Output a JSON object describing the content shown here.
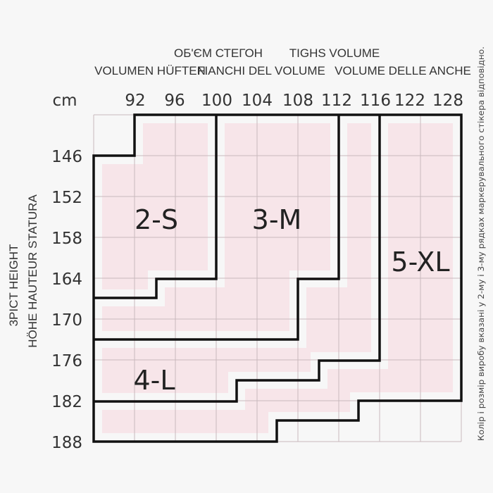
{
  "header": {
    "line1": [
      "ОБ'ЄМ СТЕГОН",
      "TIGHS VOLUME"
    ],
    "line2": [
      "VOLUMEN HÜFTEN",
      "FIANCHI DEL VOLUME",
      "VOLUME DELLE ANCHE"
    ]
  },
  "unit": "cm",
  "hip_values": [
    "92",
    "96",
    "100",
    "104",
    "108",
    "112",
    "116",
    "122",
    "128"
  ],
  "height_values": [
    "146",
    "152",
    "158",
    "164",
    "170",
    "176",
    "182",
    "188"
  ],
  "height_labels": {
    "outer": "3PICT  HEIGHT",
    "inner": "HÖHE  HAUTEUR  STATURA"
  },
  "sizes": [
    "2-S",
    "3-M",
    "4-L",
    "5-XL"
  ],
  "note": "Колір і розмір виробу вказані у 2-му і 3-му рядках маркерувального стікера відповідно.",
  "colors": {
    "fill": "#f7e5e9",
    "grid": "#c8b9bd",
    "border": "#111111",
    "background": "#f7f7f7"
  }
}
